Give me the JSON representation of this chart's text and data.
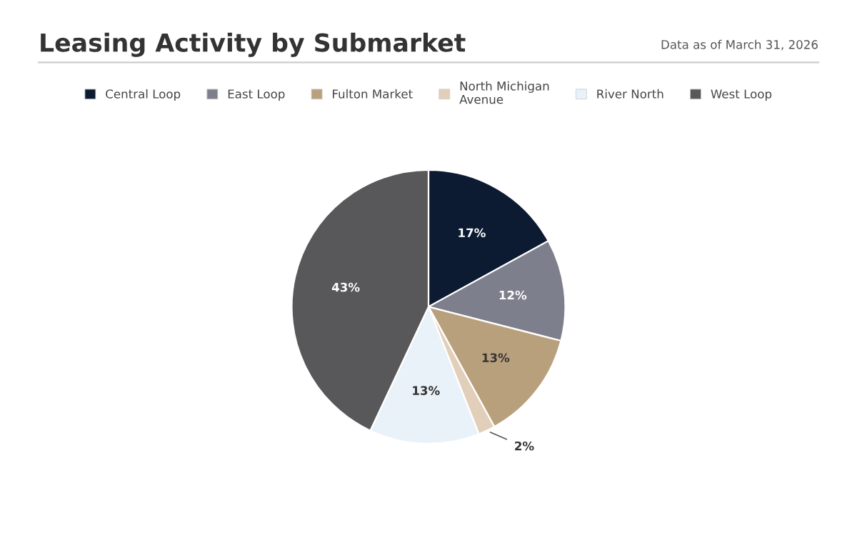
{
  "chart_data": {
    "type": "pie",
    "title": "Leasing Activity by Submarket",
    "annotations": [
      "Data as of March 31, 2026"
    ],
    "categories": [
      "Central Loop",
      "East Loop",
      "Fulton Market",
      "North Michigan Avenue",
      "River North",
      "West Loop"
    ],
    "values": [
      17,
      12,
      13,
      2,
      13,
      43
    ],
    "colors": [
      "#0c1a32",
      "#7e7f8c",
      "#b9a07c",
      "#e2cfba",
      "#e9f1f9",
      "#58585a"
    ],
    "value_labels": [
      "17%",
      "12%",
      "13%",
      "2%",
      "13%",
      "43%"
    ],
    "legend": "top"
  }
}
